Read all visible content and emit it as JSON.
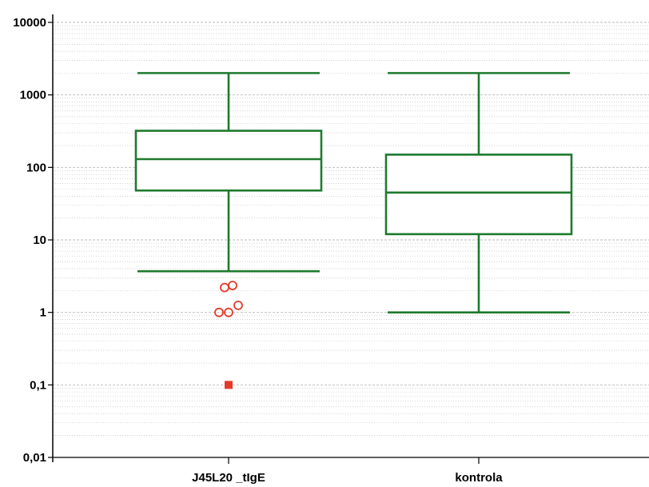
{
  "chart_data": {
    "type": "box",
    "title": "",
    "xlabel": "",
    "ylabel": "",
    "y_scale": "log",
    "ylim": [
      0.01,
      10000
    ],
    "y_ticks": [
      {
        "value": 0.01,
        "label": "0,01"
      },
      {
        "value": 0.1,
        "label": "0,1"
      },
      {
        "value": 1,
        "label": "1"
      },
      {
        "value": 10,
        "label": "10"
      },
      {
        "value": 100,
        "label": "100"
      },
      {
        "value": 1000,
        "label": "1000"
      },
      {
        "value": 10000,
        "label": "10000"
      }
    ],
    "grid": true,
    "categories": [
      "J45L20 _tIgE",
      "kontrola"
    ],
    "boxes": [
      {
        "category": "J45L20 _tIgE",
        "whisker_low": 3.7,
        "q1": 48,
        "median": 130,
        "q3": 320,
        "whisker_high": 2000,
        "outliers": [
          2.2,
          2.35,
          1.25,
          1.0,
          1.0
        ],
        "extremes": [
          0.1
        ]
      },
      {
        "category": "kontrola",
        "whisker_low": 1.0,
        "q1": 12,
        "median": 45,
        "q3": 150,
        "whisker_high": 2000,
        "outliers": [],
        "extremes": []
      }
    ],
    "colors": {
      "box": "#1e7a2e",
      "outlier": "#e53a2a",
      "grid": "#b8b8b8",
      "axis": "#000000"
    }
  }
}
